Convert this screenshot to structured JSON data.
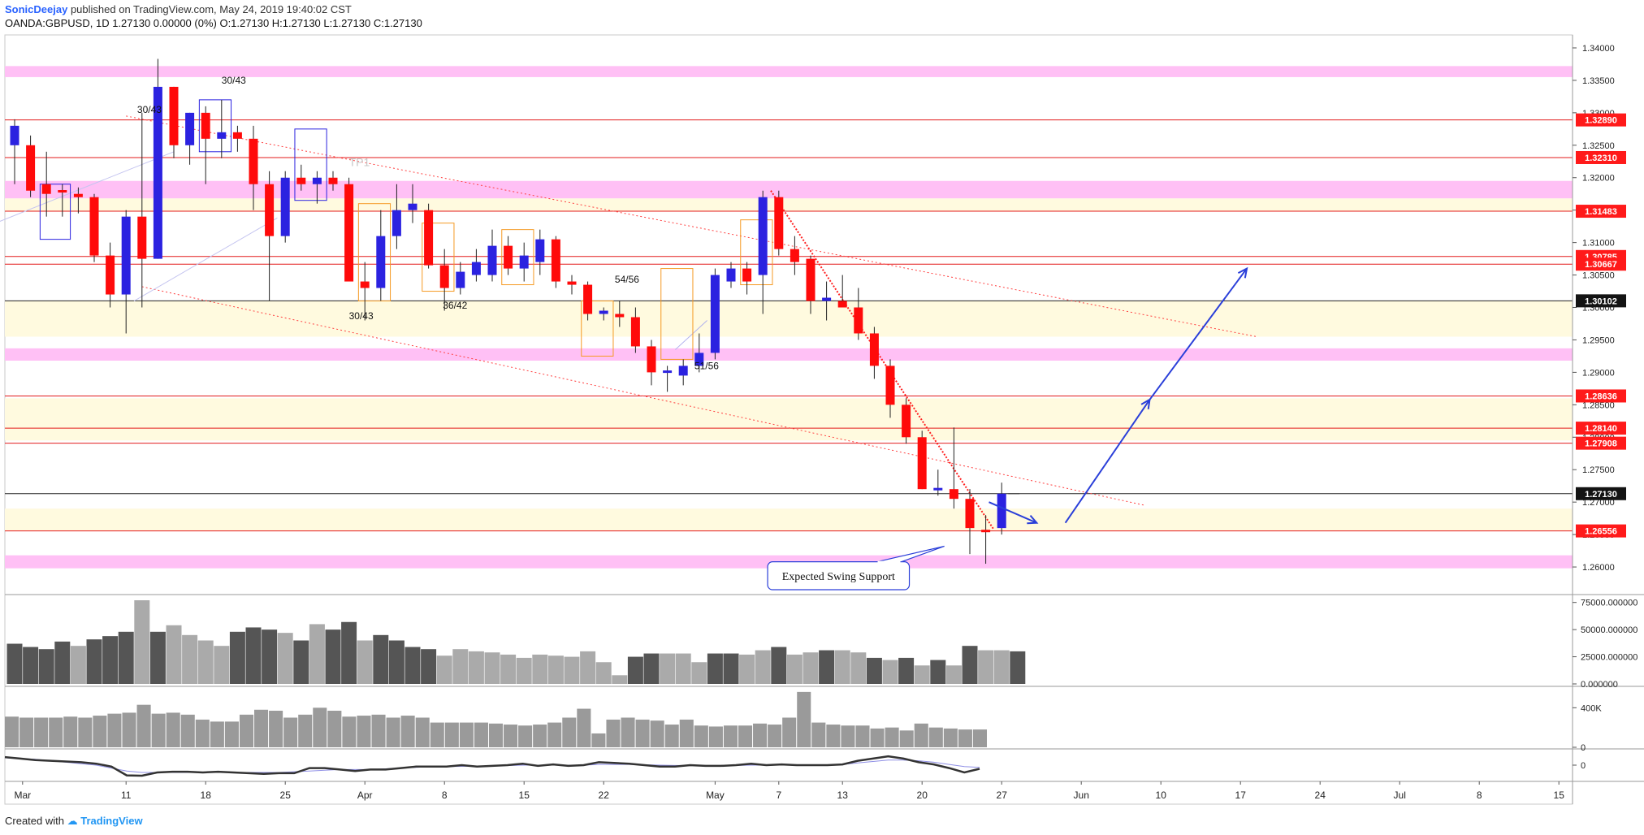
{
  "header": {
    "author": "SonicDeejay",
    "published": "published on TradingView.com, May 24, 2019 19:40:02 CST",
    "ohlc_line": "OANDA:GBPUSD, 1D  1.27130 0.00000 (0%) O:1.27130 H:1.27130 L:1.27130 C:1.27130"
  },
  "footer": {
    "created_with": "Created with",
    "brand": "TradingView"
  },
  "colors": {
    "bull": "#2b22e0",
    "bear": "#ff0a0a",
    "pink_zone": "#ffc0f5",
    "yellow_zone": "#fffadf",
    "level_line": "#e31b1b",
    "price_tag": "#ff1a1a",
    "arrow": "#2a3fd9",
    "box_orange": "#f59a23",
    "box_blue": "#2b22e0",
    "volume_dark": "#555555",
    "volume_light": "#aaaaaa"
  },
  "chart_data": {
    "type": "candlestick",
    "symbol": "OANDA:GBPUSD",
    "timeframe": "1D",
    "ylim": [
      1.256,
      1.342
    ],
    "y_ticks": [
      "1.34000",
      "1.33500",
      "1.33000",
      "1.32500",
      "1.32000",
      "1.31500",
      "1.31000",
      "1.30500",
      "1.30000",
      "1.29500",
      "1.29000",
      "1.28500",
      "1.28000",
      "1.27500",
      "1.27000",
      "1.26500",
      "1.26000"
    ],
    "x_labels": [
      {
        "label": "Mar",
        "idx": 0.5
      },
      {
        "label": "11",
        "idx": 7
      },
      {
        "label": "18",
        "idx": 12
      },
      {
        "label": "25",
        "idx": 17
      },
      {
        "label": "Apr",
        "idx": 22
      },
      {
        "label": "8",
        "idx": 27
      },
      {
        "label": "15",
        "idx": 32
      },
      {
        "label": "22",
        "idx": 37
      },
      {
        "label": "May",
        "idx": 44
      },
      {
        "label": "7",
        "idx": 48
      },
      {
        "label": "13",
        "idx": 52
      },
      {
        "label": "20",
        "idx": 57
      },
      {
        "label": "27",
        "idx": 62
      },
      {
        "label": "Jun",
        "idx": 67
      },
      {
        "label": "10",
        "idx": 72
      },
      {
        "label": "17",
        "idx": 77
      },
      {
        "label": "24",
        "idx": 82
      },
      {
        "label": "Jul",
        "idx": 87
      },
      {
        "label": "8",
        "idx": 92
      },
      {
        "label": "15",
        "idx": 97
      }
    ],
    "candles": [
      {
        "o": 1.325,
        "h": 1.329,
        "l": 1.319,
        "c": 1.328
      },
      {
        "o": 1.325,
        "h": 1.3265,
        "l": 1.317,
        "c": 1.318
      },
      {
        "o": 1.319,
        "h": 1.324,
        "l": 1.314,
        "c": 1.3175
      },
      {
        "o": 1.318,
        "h": 1.319,
        "l": 1.314,
        "c": 1.3178
      },
      {
        "o": 1.3175,
        "h": 1.3185,
        "l": 1.3145,
        "c": 1.317
      },
      {
        "o": 1.317,
        "h": 1.3175,
        "l": 1.307,
        "c": 1.308
      },
      {
        "o": 1.308,
        "h": 1.31,
        "l": 1.3,
        "c": 1.302
      },
      {
        "o": 1.302,
        "h": 1.315,
        "l": 1.296,
        "c": 1.314
      },
      {
        "o": 1.314,
        "h": 1.33,
        "l": 1.3,
        "c": 1.3075
      },
      {
        "o": 1.3075,
        "h": 1.3383,
        "l": 1.3075,
        "c": 1.334
      },
      {
        "o": 1.334,
        "h": 1.334,
        "l": 1.323,
        "c": 1.325
      },
      {
        "o": 1.325,
        "h": 1.33,
        "l": 1.322,
        "c": 1.33
      },
      {
        "o": 1.33,
        "h": 1.331,
        "l": 1.319,
        "c": 1.326
      },
      {
        "o": 1.326,
        "h": 1.332,
        "l": 1.323,
        "c": 1.327
      },
      {
        "o": 1.327,
        "h": 1.328,
        "l": 1.324,
        "c": 1.326
      },
      {
        "o": 1.326,
        "h": 1.328,
        "l": 1.315,
        "c": 1.319
      },
      {
        "o": 1.319,
        "h": 1.321,
        "l": 1.301,
        "c": 1.311
      },
      {
        "o": 1.311,
        "h": 1.321,
        "l": 1.31,
        "c": 1.32
      },
      {
        "o": 1.32,
        "h": 1.322,
        "l": 1.318,
        "c": 1.319
      },
      {
        "o": 1.319,
        "h": 1.321,
        "l": 1.316,
        "c": 1.32
      },
      {
        "o": 1.32,
        "h": 1.321,
        "l": 1.318,
        "c": 1.319
      },
      {
        "o": 1.319,
        "h": 1.32,
        "l": 1.304,
        "c": 1.304
      },
      {
        "o": 1.304,
        "h": 1.307,
        "l": 1.298,
        "c": 1.303
      },
      {
        "o": 1.303,
        "h": 1.315,
        "l": 1.301,
        "c": 1.311
      },
      {
        "o": 1.311,
        "h": 1.319,
        "l": 1.309,
        "c": 1.315
      },
      {
        "o": 1.315,
        "h": 1.319,
        "l": 1.313,
        "c": 1.316
      },
      {
        "o": 1.315,
        "h": 1.316,
        "l": 1.306,
        "c": 1.3065
      },
      {
        "o": 1.3065,
        "h": 1.309,
        "l": 1.2995,
        "c": 1.303
      },
      {
        "o": 1.303,
        "h": 1.307,
        "l": 1.302,
        "c": 1.3055
      },
      {
        "o": 1.305,
        "h": 1.309,
        "l": 1.304,
        "c": 1.307
      },
      {
        "o": 1.305,
        "h": 1.312,
        "l": 1.304,
        "c": 1.3095
      },
      {
        "o": 1.3095,
        "h": 1.311,
        "l": 1.305,
        "c": 1.306
      },
      {
        "o": 1.306,
        "h": 1.31,
        "l": 1.304,
        "c": 1.308
      },
      {
        "o": 1.307,
        "h": 1.312,
        "l": 1.305,
        "c": 1.3105
      },
      {
        "o": 1.3105,
        "h": 1.311,
        "l": 1.303,
        "c": 1.304
      },
      {
        "o": 1.304,
        "h": 1.305,
        "l": 1.302,
        "c": 1.3035
      },
      {
        "o": 1.3035,
        "h": 1.304,
        "l": 1.298,
        "c": 1.299
      },
      {
        "o": 1.299,
        "h": 1.3,
        "l": 1.298,
        "c": 1.2995
      },
      {
        "o": 1.299,
        "h": 1.301,
        "l": 1.297,
        "c": 1.2985
      },
      {
        "o": 1.2985,
        "h": 1.3,
        "l": 1.293,
        "c": 1.294
      },
      {
        "o": 1.294,
        "h": 1.295,
        "l": 1.288,
        "c": 1.29
      },
      {
        "o": 1.29,
        "h": 1.291,
        "l": 1.287,
        "c": 1.2902
      },
      {
        "o": 1.2895,
        "h": 1.292,
        "l": 1.288,
        "c": 1.291
      },
      {
        "o": 1.291,
        "h": 1.296,
        "l": 1.29,
        "c": 1.293
      },
      {
        "o": 1.293,
        "h": 1.306,
        "l": 1.292,
        "c": 1.305
      },
      {
        "o": 1.304,
        "h": 1.307,
        "l": 1.303,
        "c": 1.306
      },
      {
        "o": 1.306,
        "h": 1.307,
        "l": 1.302,
        "c": 1.304
      },
      {
        "o": 1.305,
        "h": 1.318,
        "l": 1.299,
        "c": 1.317
      },
      {
        "o": 1.317,
        "h": 1.318,
        "l": 1.308,
        "c": 1.309
      },
      {
        "o": 1.309,
        "h": 1.311,
        "l": 1.305,
        "c": 1.307
      },
      {
        "o": 1.3075,
        "h": 1.308,
        "l": 1.299,
        "c": 1.301
      },
      {
        "o": 1.301,
        "h": 1.304,
        "l": 1.298,
        "c": 1.3015
      },
      {
        "o": 1.301,
        "h": 1.305,
        "l": 1.3,
        "c": 1.3
      },
      {
        "o": 1.3,
        "h": 1.303,
        "l": 1.295,
        "c": 1.296
      },
      {
        "o": 1.296,
        "h": 1.297,
        "l": 1.289,
        "c": 1.291
      },
      {
        "o": 1.291,
        "h": 1.292,
        "l": 1.283,
        "c": 1.285
      },
      {
        "o": 1.285,
        "h": 1.286,
        "l": 1.279,
        "c": 1.28
      },
      {
        "o": 1.28,
        "h": 1.281,
        "l": 1.272,
        "c": 1.272
      },
      {
        "o": 1.272,
        "h": 1.275,
        "l": 1.271,
        "c": 1.272
      },
      {
        "o": 1.272,
        "h": 1.2815,
        "l": 1.269,
        "c": 1.2705
      },
      {
        "o": 1.2705,
        "h": 1.272,
        "l": 1.262,
        "c": 1.266
      },
      {
        "o": 1.2656,
        "h": 1.268,
        "l": 1.2605,
        "c": 1.2655
      },
      {
        "o": 1.266,
        "h": 1.273,
        "l": 1.265,
        "c": 1.2713
      }
    ],
    "volume_axis": [
      "75000.000000",
      "50000.000000",
      "25000.000000",
      "0.000000"
    ],
    "volume_max": 80000,
    "volume": [
      {
        "v": 37000,
        "d": 1
      },
      {
        "v": 34000,
        "d": 1
      },
      {
        "v": 32000,
        "d": 1
      },
      {
        "v": 39000,
        "d": 1
      },
      {
        "v": 35000,
        "d": 0
      },
      {
        "v": 41000,
        "d": 1
      },
      {
        "v": 44000,
        "d": 1
      },
      {
        "v": 48000,
        "d": 1
      },
      {
        "v": 77000,
        "d": 0
      },
      {
        "v": 48000,
        "d": 1
      },
      {
        "v": 54000,
        "d": 0
      },
      {
        "v": 45000,
        "d": 0
      },
      {
        "v": 40000,
        "d": 0
      },
      {
        "v": 35000,
        "d": 0
      },
      {
        "v": 48000,
        "d": 1
      },
      {
        "v": 52000,
        "d": 1
      },
      {
        "v": 50000,
        "d": 1
      },
      {
        "v": 47000,
        "d": 0
      },
      {
        "v": 40000,
        "d": 1
      },
      {
        "v": 55000,
        "d": 0
      },
      {
        "v": 50000,
        "d": 1
      },
      {
        "v": 57000,
        "d": 1
      },
      {
        "v": 40000,
        "d": 0
      },
      {
        "v": 45000,
        "d": 1
      },
      {
        "v": 40000,
        "d": 1
      },
      {
        "v": 34000,
        "d": 1
      },
      {
        "v": 32000,
        "d": 1
      },
      {
        "v": 26000,
        "d": 0
      },
      {
        "v": 32000,
        "d": 0
      },
      {
        "v": 30000,
        "d": 0
      },
      {
        "v": 29000,
        "d": 0
      },
      {
        "v": 27000,
        "d": 0
      },
      {
        "v": 24000,
        "d": 0
      },
      {
        "v": 27000,
        "d": 0
      },
      {
        "v": 26000,
        "d": 0
      },
      {
        "v": 25000,
        "d": 0
      },
      {
        "v": 30000,
        "d": 0
      },
      {
        "v": 20000,
        "d": 0
      },
      {
        "v": 8000,
        "d": 0
      },
      {
        "v": 25000,
        "d": 1
      },
      {
        "v": 28000,
        "d": 1
      },
      {
        "v": 28000,
        "d": 0
      },
      {
        "v": 28000,
        "d": 0
      },
      {
        "v": 20000,
        "d": 0
      },
      {
        "v": 28000,
        "d": 1
      },
      {
        "v": 28000,
        "d": 1
      },
      {
        "v": 27000,
        "d": 0
      },
      {
        "v": 31000,
        "d": 0
      },
      {
        "v": 34000,
        "d": 1
      },
      {
        "v": 27000,
        "d": 0
      },
      {
        "v": 29000,
        "d": 0
      },
      {
        "v": 31000,
        "d": 1
      },
      {
        "v": 31000,
        "d": 0
      },
      {
        "v": 29000,
        "d": 0
      },
      {
        "v": 24000,
        "d": 1
      },
      {
        "v": 22000,
        "d": 0
      },
      {
        "v": 24000,
        "d": 1
      },
      {
        "v": 17000,
        "d": 0
      },
      {
        "v": 22000,
        "d": 1
      },
      {
        "v": 17000,
        "d": 0
      },
      {
        "v": 35000,
        "d": 1
      },
      {
        "v": 31000,
        "d": 0
      },
      {
        "v": 31000,
        "d": 0
      },
      {
        "v": 30000,
        "d": 1
      }
    ],
    "second_axis": [
      "400K",
      "0"
    ],
    "second_max": 600000,
    "second_values": [
      310000,
      300000,
      300000,
      300000,
      310000,
      300000,
      320000,
      340000,
      350000,
      430000,
      340000,
      350000,
      330000,
      280000,
      260000,
      260000,
      330000,
      380000,
      370000,
      300000,
      330000,
      400000,
      370000,
      310000,
      320000,
      330000,
      300000,
      320000,
      300000,
      250000,
      250000,
      250000,
      250000,
      240000,
      230000,
      220000,
      230000,
      250000,
      300000,
      390000,
      140000,
      280000,
      300000,
      280000,
      270000,
      230000,
      280000,
      220000,
      210000,
      220000,
      220000,
      240000,
      230000,
      300000,
      560000,
      250000,
      230000,
      220000,
      220000,
      190000,
      200000,
      170000,
      240000,
      200000,
      190000,
      180000,
      180000
    ],
    "third_axis": [
      "0"
    ],
    "third_range": [
      -1.0,
      1.0
    ],
    "third_main": [
      0.55,
      0.45,
      0.35,
      0.3,
      0.25,
      0.2,
      0.1,
      -0.1,
      -0.7,
      -0.72,
      -0.5,
      -0.45,
      -0.45,
      -0.5,
      -0.45,
      -0.5,
      -0.55,
      -0.6,
      -0.55,
      -0.55,
      -0.2,
      -0.2,
      -0.3,
      -0.4,
      -0.3,
      -0.3,
      -0.2,
      -0.1,
      -0.1,
      -0.1,
      0,
      -0.1,
      -0.05,
      0,
      0.1,
      -0.05,
      0.05,
      -0.05,
      0,
      0.2,
      0.15,
      0.1,
      0,
      -0.1,
      -0.1,
      0,
      -0.05,
      -0.05,
      0,
      0.1,
      0,
      0.05,
      0,
      0,
      0,
      0.05,
      0.3,
      0.45,
      0.6,
      0.45,
      0.2,
      0.05,
      -0.2,
      -0.5,
      -0.25
    ],
    "third_signal": [
      0.5,
      0.45,
      0.4,
      0.3,
      0.2,
      0.1,
      0,
      -0.2,
      -0.4,
      -0.5,
      -0.5,
      -0.5,
      -0.5,
      -0.5,
      -0.5,
      -0.5,
      -0.5,
      -0.5,
      -0.5,
      -0.45,
      -0.4,
      -0.35,
      -0.3,
      -0.3,
      -0.3,
      -0.25,
      -0.2,
      -0.15,
      -0.1,
      -0.1,
      -0.08,
      -0.06,
      -0.05,
      -0.03,
      0,
      0,
      0,
      0,
      0,
      0.05,
      0.05,
      0.05,
      0.03,
      0,
      -0.02,
      -0.03,
      -0.03,
      -0.03,
      -0.02,
      0,
      0,
      0,
      0,
      0,
      0,
      0.05,
      0.15,
      0.25,
      0.35,
      0.35,
      0.3,
      0.2,
      0.05,
      -0.1,
      -0.15
    ],
    "zones": [
      {
        "kind": "pink",
        "y1": 1.3355,
        "y2": 1.3372
      },
      {
        "kind": "pink",
        "y1": 1.3168,
        "y2": 1.3195
      },
      {
        "kind": "yellow",
        "y1": 1.3148,
        "y2": 1.3168
      },
      {
        "kind": "yellow",
        "y1": 1.2955,
        "y2": 1.301
      },
      {
        "kind": "pink",
        "y1": 1.2918,
        "y2": 1.2937
      },
      {
        "kind": "yellow",
        "y1": 1.2795,
        "y2": 1.286
      },
      {
        "kind": "yellow",
        "y1": 1.2656,
        "y2": 1.269
      },
      {
        "kind": "pink",
        "y1": 1.2598,
        "y2": 1.2618
      }
    ],
    "levels": [
      {
        "value": 1.3289,
        "label": "1.32890",
        "kind": "red"
      },
      {
        "value": 1.3231,
        "label": "1.32310",
        "kind": "red"
      },
      {
        "value": 1.31483,
        "label": "1.31483",
        "kind": "red"
      },
      {
        "value": 1.30785,
        "label": "1.30785",
        "kind": "red"
      },
      {
        "value": 1.30667,
        "label": "1.30667",
        "kind": "red"
      },
      {
        "value": 1.30102,
        "label": "1.30102",
        "kind": "black"
      },
      {
        "value": 1.28636,
        "label": "1.28636",
        "kind": "red"
      },
      {
        "value": 1.2814,
        "label": "1.28140",
        "kind": "red"
      },
      {
        "value": 1.27908,
        "label": "1.27908",
        "kind": "red"
      },
      {
        "value": 1.2713,
        "label": "1.27130",
        "kind": "black"
      },
      {
        "value": 1.26556,
        "label": "1.26556",
        "kind": "red"
      }
    ],
    "trendlines": [
      {
        "x1": 7,
        "y1": 1.3295,
        "x2": 78,
        "y2": 1.2955,
        "color": "#ff4040",
        "style": "dot"
      },
      {
        "x1": 8,
        "y1": 1.3032,
        "x2": 71,
        "y2": 1.2695,
        "color": "#ff4040",
        "style": "dot"
      },
      {
        "x1": 47.5,
        "y1": 1.318,
        "x2": 61.5,
        "y2": 1.2658,
        "color": "#ff2020",
        "style": "densedot"
      },
      {
        "x1": -1,
        "y1": 1.3132,
        "x2": 10,
        "y2": 1.324,
        "color": "#c5c5f0",
        "style": "solid"
      },
      {
        "x1": 7.5,
        "y1": 1.301,
        "x2": 16.5,
        "y2": 1.3138,
        "color": "#c5c5f0",
        "style": "solid"
      },
      {
        "x1": 41.5,
        "y1": 1.2935,
        "x2": 43.5,
        "y2": 1.298,
        "color": "#b0b0ee",
        "style": "solid"
      }
    ],
    "boxes": [
      {
        "x1": 1.6,
        "x2": 3.5,
        "y1": 1.3105,
        "y2": 1.319,
        "color": "#2b22e0"
      },
      {
        "x1": 11.6,
        "x2": 13.6,
        "y1": 1.324,
        "y2": 1.332,
        "color": "#2b22e0"
      },
      {
        "x1": 17.6,
        "x2": 19.6,
        "y1": 1.3165,
        "y2": 1.3275,
        "color": "#2b22e0"
      },
      {
        "x1": 21.6,
        "x2": 23.6,
        "y1": 1.301,
        "y2": 1.316,
        "color": "#f59a23"
      },
      {
        "x1": 25.6,
        "x2": 27.6,
        "y1": 1.3025,
        "y2": 1.313,
        "color": "#f59a23"
      },
      {
        "x1": 30.6,
        "x2": 32.6,
        "y1": 1.3035,
        "y2": 1.312,
        "color": "#f59a23"
      },
      {
        "x1": 35.6,
        "x2": 37.6,
        "y1": 1.2925,
        "y2": 1.301,
        "color": "#f59a23"
      },
      {
        "x1": 40.6,
        "x2": 42.6,
        "y1": 1.292,
        "y2": 1.306,
        "color": "#f59a23"
      },
      {
        "x1": 45.6,
        "x2": 47.6,
        "y1": 1.3035,
        "y2": 1.3135,
        "color": "#f59a23"
      }
    ],
    "annotations": [
      {
        "text": "30/43",
        "x": 7.7,
        "y": 1.33,
        "color": "#111"
      },
      {
        "text": "30/43",
        "x": 13.0,
        "y": 1.3345,
        "color": "#111"
      },
      {
        "text": "30/43",
        "x": 21.0,
        "y": 1.2982,
        "color": "#111"
      },
      {
        "text": "36/42",
        "x": 26.9,
        "y": 1.2998,
        "color": "#111"
      },
      {
        "text": "54/56",
        "x": 37.7,
        "y": 1.3038,
        "color": "#111"
      },
      {
        "text": "51/56",
        "x": 42.7,
        "y": 1.2905,
        "color": "#111"
      },
      {
        "text": "TP1",
        "x": 21.0,
        "y": 1.3218,
        "color": "#c8c8c8"
      }
    ],
    "arrows": [
      {
        "points": [
          [
            61.2,
            1.27
          ],
          [
            64.2,
            1.2668
          ]
        ]
      },
      {
        "points": [
          [
            66.0,
            1.2668
          ],
          [
            71.3,
            1.2858
          ]
        ]
      },
      {
        "points": [
          [
            71.3,
            1.2858
          ],
          [
            77.4,
            1.306
          ]
        ]
      }
    ],
    "callout": {
      "text": "Expected Swing Support",
      "x1": 47.3,
      "x2": 56.2,
      "y1": 1.2565,
      "y2": 1.2608,
      "tail_x": 58.4,
      "tail_y": 1.2632
    }
  }
}
